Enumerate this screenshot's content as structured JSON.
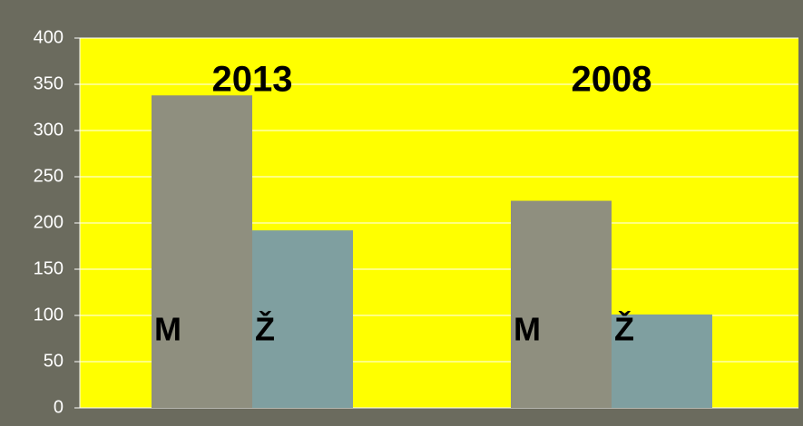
{
  "chart_data": {
    "type": "bar",
    "categories": [
      "2013",
      "2008"
    ],
    "series": [
      {
        "name": "M",
        "color": "#8f8f7f",
        "values": [
          338,
          224
        ]
      },
      {
        "name": "Ž",
        "color": "#7f9fa0",
        "values": [
          192,
          101
        ]
      }
    ],
    "ylim": [
      0,
      400
    ],
    "yticks": [
      0,
      50,
      100,
      150,
      200,
      250,
      300,
      350,
      400
    ],
    "grid": true
  }
}
